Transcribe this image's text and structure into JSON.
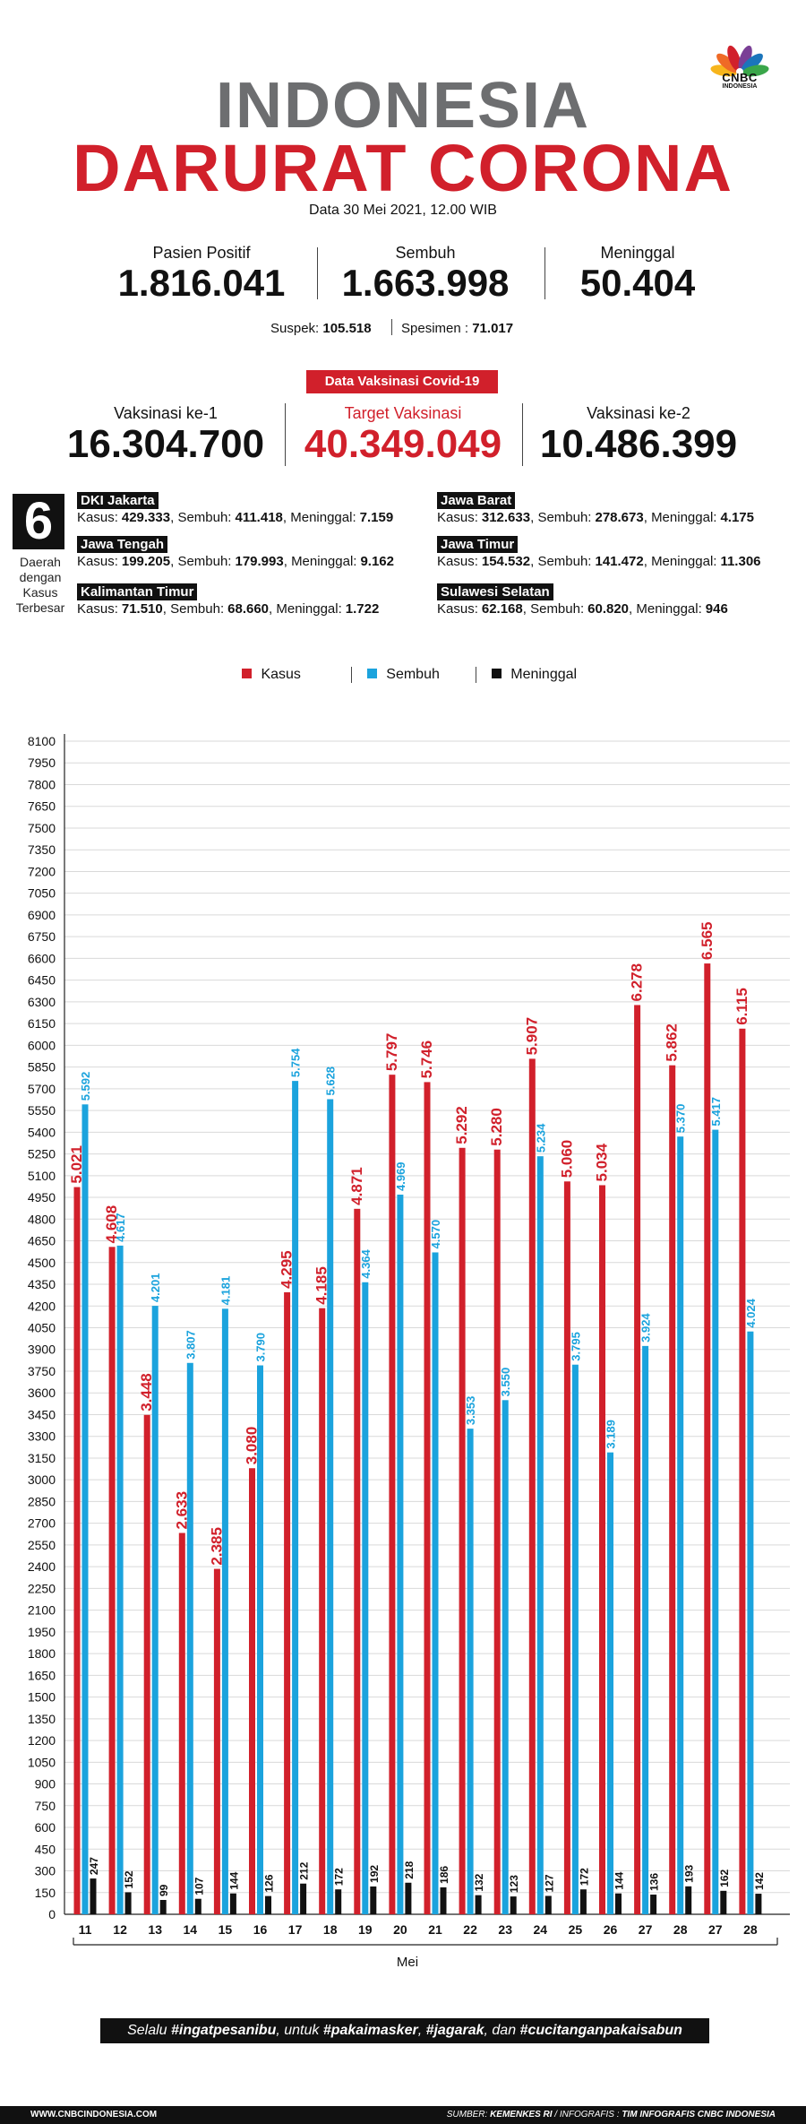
{
  "brand": {
    "logo_text": "CNBC",
    "logo_sub": "INDONESIA",
    "colors": [
      "#f7b51c",
      "#ef6a26",
      "#d1202b",
      "#7a3f96",
      "#1b75bb",
      "#3aa64a"
    ]
  },
  "header": {
    "title_line1": "INDONESIA",
    "title_line2": "DARURAT CORONA",
    "date": "Data 30 Mei 2021, 12.00 WIB"
  },
  "stats": {
    "positif_label": "Pasien Positif",
    "positif_value": "1.816.041",
    "sembuh_label": "Sembuh",
    "sembuh_value": "1.663.998",
    "meninggal_label": "Meninggal",
    "meninggal_value": "50.404",
    "suspek_label": "Suspek:",
    "suspek_value": "105.518",
    "spesimen_label": "Spesimen :",
    "spesimen_value": "71.017"
  },
  "vaksin": {
    "banner": "Data Vaksinasi Covid-19",
    "v1_label": "Vaksinasi ke-1",
    "v1_value": "16.304.700",
    "target_label": "Target Vaksinasi",
    "target_value": "40.349.049",
    "v2_label": "Vaksinasi ke-2",
    "v2_value": "10.486.399"
  },
  "regions": {
    "count": "6",
    "caption_l1": "Daerah",
    "caption_l2": "dengan",
    "caption_l3": "Kasus",
    "caption_l4": "Terbesar",
    "items": [
      {
        "name": "DKI Jakarta",
        "kasus": "429.333",
        "sembuh": "411.418",
        "meninggal": "7.159"
      },
      {
        "name": "Jawa Barat",
        "kasus": "312.633",
        "sembuh": "278.673",
        "meninggal": "4.175"
      },
      {
        "name": "Jawa Tengah",
        "kasus": "199.205",
        "sembuh": "179.993",
        "meninggal": "9.162"
      },
      {
        "name": "Jawa Timur",
        "kasus": "154.532",
        "sembuh": "141.472",
        "meninggal": "11.306"
      },
      {
        "name": "Kalimantan Timur",
        "kasus": "71.510",
        "sembuh": "68.660",
        "meninggal": "1.722"
      },
      {
        "name": "Sulawesi Selatan",
        "kasus": "62.168",
        "sembuh": "60.820",
        "meninggal": "946"
      }
    ],
    "kasus_label": "Kasus:",
    "sembuh_label": "Sembuh:",
    "meninggal_label": "Meninggal:"
  },
  "chart_data": {
    "type": "bar",
    "title": "",
    "xlabel": "Mei",
    "ylabel": "",
    "ylim": [
      0,
      8100
    ],
    "yticks": [
      0,
      150,
      300,
      450,
      600,
      750,
      900,
      1050,
      1200,
      1350,
      1500,
      1650,
      1800,
      1950,
      2100,
      2250,
      2400,
      2550,
      2700,
      2850,
      3000,
      3150,
      3300,
      3450,
      3600,
      3750,
      3900,
      4050,
      4200,
      4350,
      4500,
      4650,
      4800,
      4950,
      5100,
      5250,
      5400,
      5550,
      5700,
      5850,
      6000,
      6150,
      6300,
      6450,
      6600,
      6750,
      6900,
      7050,
      7200,
      7350,
      7500,
      7650,
      7800,
      7950,
      8100
    ],
    "categories": [
      "11",
      "12",
      "13",
      "14",
      "15",
      "16",
      "17",
      "18",
      "19",
      "20",
      "21",
      "22",
      "23",
      "24",
      "25",
      "26",
      "27",
      "28",
      "27",
      "28"
    ],
    "legend_position": "top",
    "series": [
      {
        "name": "Kasus",
        "color": "#d1202b",
        "values": [
          5021,
          4608,
          3448,
          2633,
          2385,
          3080,
          4295,
          4185,
          4871,
          5797,
          5746,
          5292,
          5280,
          5907,
          5060,
          5034,
          6278,
          5862,
          6565,
          6115
        ],
        "labels": [
          "5.021",
          "4.608",
          "3.448",
          "2.633",
          "2.385",
          "3.080",
          "4.295",
          "4.185",
          "4.871",
          "5.797",
          "5.746",
          "5.292",
          "5.280",
          "5.907",
          "5.060",
          "5.034",
          "6.278",
          "5.862",
          "6.565",
          "6.115"
        ]
      },
      {
        "name": "Sembuh",
        "color": "#1ba3dd",
        "values": [
          5592,
          4617,
          4201,
          3807,
          4181,
          3790,
          5754,
          5628,
          4364,
          4969,
          4570,
          3353,
          3550,
          5234,
          3795,
          3189,
          3924,
          5370,
          5417,
          4024
        ],
        "labels": [
          "5.592",
          "4.617",
          "4.201",
          "3.807",
          "4.181",
          "3.790",
          "5.754",
          "5.628",
          "4.364",
          "4.969",
          "4.570",
          "3.353",
          "3.550",
          "5.234",
          "3.795",
          "3.189",
          "3.924",
          "5.370",
          "5.417",
          "4.024"
        ]
      },
      {
        "name": "Meninggal",
        "color": "#111111",
        "values": [
          247,
          152,
          99,
          107,
          144,
          126,
          212,
          172,
          192,
          218,
          186,
          132,
          123,
          127,
          172,
          144,
          136,
          193,
          162,
          142
        ],
        "labels": [
          "247",
          "152",
          "99",
          "107",
          "144",
          "126",
          "212",
          "172",
          "192",
          "218",
          "186",
          "132",
          "123",
          "127",
          "172",
          "144",
          "136",
          "193",
          "162",
          "142"
        ]
      }
    ]
  },
  "footer": {
    "slogan_pre": "Selalu ",
    "slogan_h1": "#ingatpesanibu",
    "slogan_mid1": ", untuk ",
    "slogan_h2": "#pakaimasker",
    "slogan_mid2": ", ",
    "slogan_h3": "#jagarak",
    "slogan_mid3": ", dan ",
    "slogan_h4": "#cucitanganpakaisabun",
    "website": "WWW.CNBCINDONESIA.COM",
    "source_label": "SUMBER: ",
    "source_value": "KEMENKES RI",
    "infografis_label": " / INFOGRAFIS : ",
    "infografis_value": "TIM INFOGRAFIS CNBC INDONESIA"
  }
}
